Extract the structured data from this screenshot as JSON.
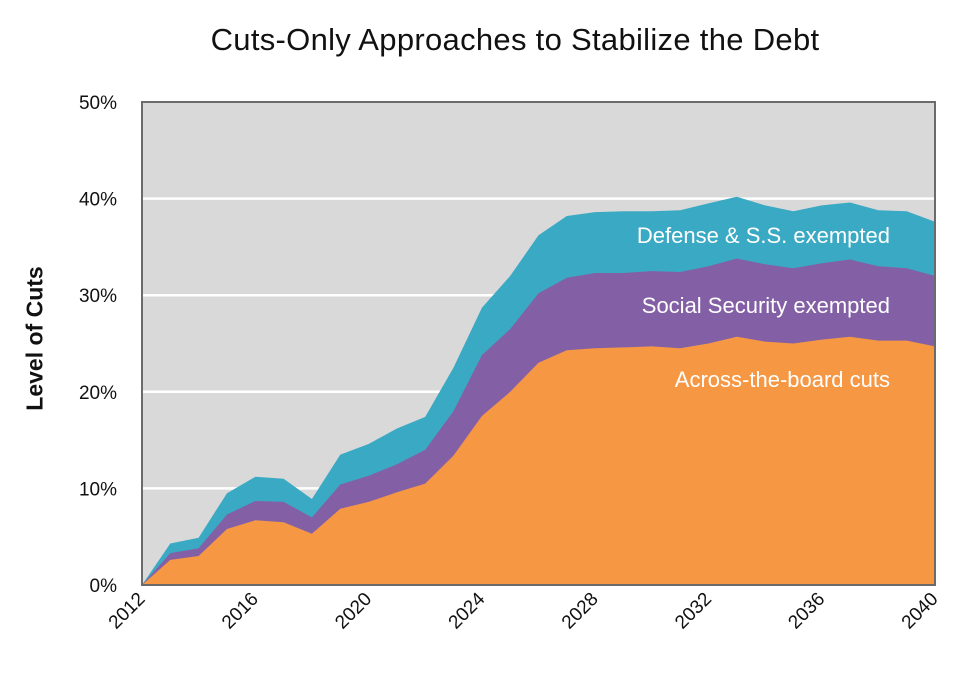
{
  "chart_data": {
    "type": "area",
    "title": "Cuts-Only Approaches to Stabilize the Debt",
    "xlabel": "",
    "ylabel": "Level of Cuts",
    "ylim": [
      0,
      50
    ],
    "xlim": [
      2012,
      2040
    ],
    "y_ticks": [
      "0%",
      "10%",
      "20%",
      "30%",
      "40%",
      "50%"
    ],
    "x_ticks": [
      "2012",
      "2016",
      "2020",
      "2024",
      "2028",
      "2032",
      "2036",
      "2040"
    ],
    "grid": true,
    "x": [
      2012,
      2013,
      2014,
      2015,
      2016,
      2017,
      2018,
      2019,
      2020,
      2021,
      2022,
      2023,
      2024,
      2025,
      2026,
      2027,
      2028,
      2029,
      2030,
      2031,
      2032,
      2033,
      2034,
      2035,
      2036,
      2037,
      2038,
      2039,
      2040
    ],
    "series": [
      {
        "name": "Defense & S.S. exempted",
        "color": "#3aa9c4",
        "values": [
          0,
          4.3,
          4.9,
          9.5,
          11.2,
          11.0,
          8.9,
          13.5,
          14.6,
          16.2,
          17.4,
          22.5,
          28.7,
          32.0,
          36.2,
          38.2,
          38.6,
          38.7,
          38.7,
          38.8,
          39.5,
          40.2,
          39.3,
          38.7,
          39.3,
          39.6,
          38.8,
          38.7,
          37.6
        ]
      },
      {
        "name": "Social Security exempted",
        "color": "#8360a6",
        "values": [
          0,
          3.3,
          3.8,
          7.3,
          8.7,
          8.6,
          7.0,
          10.4,
          11.3,
          12.5,
          14.0,
          18.0,
          23.8,
          26.5,
          30.2,
          31.8,
          32.3,
          32.3,
          32.5,
          32.4,
          33.0,
          33.8,
          33.2,
          32.8,
          33.3,
          33.7,
          33.0,
          32.8,
          32.0
        ]
      },
      {
        "name": "Across-the-board cuts",
        "color": "#f69744",
        "values": [
          0,
          2.6,
          3.0,
          5.8,
          6.7,
          6.5,
          5.3,
          7.9,
          8.6,
          9.6,
          10.5,
          13.4,
          17.5,
          20.0,
          23.0,
          24.3,
          24.5,
          24.6,
          24.7,
          24.5,
          25.0,
          25.7,
          25.2,
          25.0,
          25.4,
          25.7,
          25.3,
          25.3,
          24.7
        ]
      }
    ],
    "plot_background": "#d9d9d9",
    "gridline_color": "#ffffff"
  }
}
